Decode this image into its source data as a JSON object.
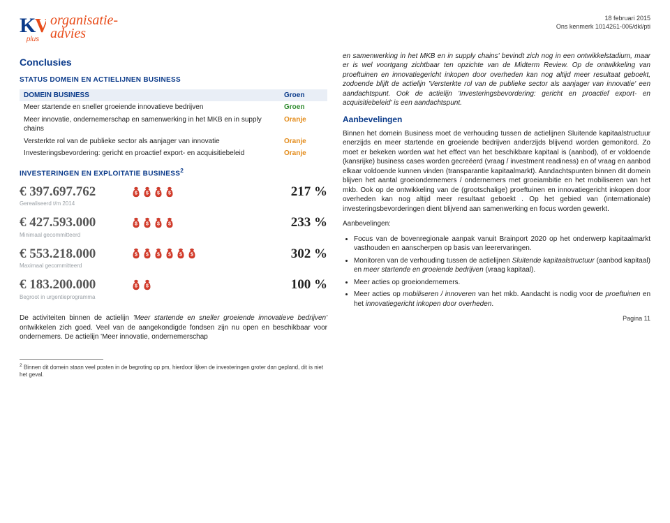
{
  "header": {
    "logo_word1": "organisatie-",
    "logo_word2": "advies",
    "plus_label": "plus",
    "date": "18 februari 2015",
    "kenmerk": "Ons kenmerk 1014261-006/dkl/pti"
  },
  "left": {
    "conclusies_title": "Conclusies",
    "status_caption": "STATUS DOMEIN EN ACTIELIJNEN BUSINESS",
    "table_header_l": "DOMEIN BUSINESS",
    "table_header_r": "Groen",
    "rows": [
      {
        "label": "Meer startende en sneller groeiende innovatieve bedrijven",
        "value": "Groen",
        "cls": "green"
      },
      {
        "label": "Meer innovatie, ondernemerschap en samenwerking in het MKB en in supply chains",
        "value": "Oranje",
        "cls": "orange"
      },
      {
        "label": "Versterkte rol van de publieke sector als aanjager van innovatie",
        "value": "Oranje",
        "cls": "orange"
      },
      {
        "label": "Investeringsbevordering: gericht en proactief export- en acquisitiebeleid",
        "value": "Oranje",
        "cls": "orange"
      }
    ],
    "invest_caption": "INVESTERINGEN EN EXPLOITATIE BUSINESS",
    "sup": "2",
    "invest": [
      {
        "amount": "€ 397.697.762",
        "sub": "Gerealiseerd t/m 2014",
        "bags": 4,
        "pct": "217 %"
      },
      {
        "amount": "€ 427.593.000",
        "sub": "Minimaal gecommitteerd",
        "bags": 4,
        "pct": "233 %"
      },
      {
        "amount": "€ 553.218.000",
        "sub": "Maximaal gecommitteerd",
        "bags": 6,
        "pct": "302 %"
      },
      {
        "amount": "€ 183.200.000",
        "sub": "Begroot in urgentieprogramma",
        "bags": 2,
        "pct": "100 %"
      }
    ],
    "body_para": "De activiteiten binnen de actielijn 'Meer startende en sneller groeiende innovatieve bedrijven' ontwikkelen zich goed. Veel van de aangekondigde fondsen zijn nu open en beschikbaar voor ondernemers. De actielijn 'Meer innovatie, ondernemerschap"
  },
  "right": {
    "para1": "en samenwerking in het MKB en in supply chains' bevindt zich nog in een ontwikkelstadium, maar er is wel voortgang zichtbaar ten opzichte van de Midterm Review. Op de ontwikkeling van proeftuinen en innovatiegericht inkopen door overheden kan nog altijd meer resultaat geboekt, zodoende blijft de actielijn 'Versterkte rol van de publieke sector als aanjager van innovatie' een aandachtspunt. Ook de actielijn 'Investeringsbevordering: gericht en proactief export- en acquisitiebeleid' is een aandachtspunt.",
    "aanbevelingen_title": "Aanbevelingen",
    "para2": "Binnen het domein Business moet de verhouding tussen de actielijnen Sluitende kapitaalstructuur enerzijds en meer startende en groeiende bedrijven anderzijds blijvend worden gemonitord. Zo moet er bekeken worden wat het effect van het beschikbare kapitaal is (aanbod), of er voldoende (kansrijke) business cases worden gecreëerd (vraag / investment readiness) en of vraag en aanbod elkaar voldoende kunnen vinden (transparantie kapitaalmarkt). Aandachtspunten binnen dit domein blijven het aantal groeiondernemers / ondernemers met groeiambitie en het mobiliseren van het mkb. Ook op de ontwikkeling van de (grootschalige) proeftuinen en innovatiegericht inkopen door overheden kan nog altijd meer resultaat geboekt . Op het gebied van (internationale) investeringsbevorderingen dient blijvend aan samenwerking en focus worden gewerkt.",
    "label_aanbev": "Aanbevelingen:",
    "bullets": [
      "Focus van de bovenregionale aanpak vanuit Brainport 2020 op het onderwerp kapitaalmarkt vasthouden en aanscherpen op basis van leerervaringen.",
      "Monitoren van de verhouding tussen de actielijnen Sluitende kapitaalstructuur (aanbod kapitaal) en meer startende en groeiende bedrijven (vraag kapitaal).",
      "Meer acties op groeiondernemers.",
      "Meer acties op mobiliseren / innoveren van het mkb. Aandacht is nodig voor de proeftuinen en het innovatiegericht inkopen door overheden."
    ]
  },
  "footnote": "Binnen dit domein staan veel posten in de begroting op pm, hierdoor lijken de investeringen groter dan gepland, dit is niet het geval.",
  "footnote_sup": "2",
  "page": "Pagina 11",
  "colors": {
    "bag_fill": "#d43b2a",
    "bag_stroke": "#b12f22",
    "accent_blue": "#0a3a8a",
    "accent_orange": "#e84c1a"
  }
}
